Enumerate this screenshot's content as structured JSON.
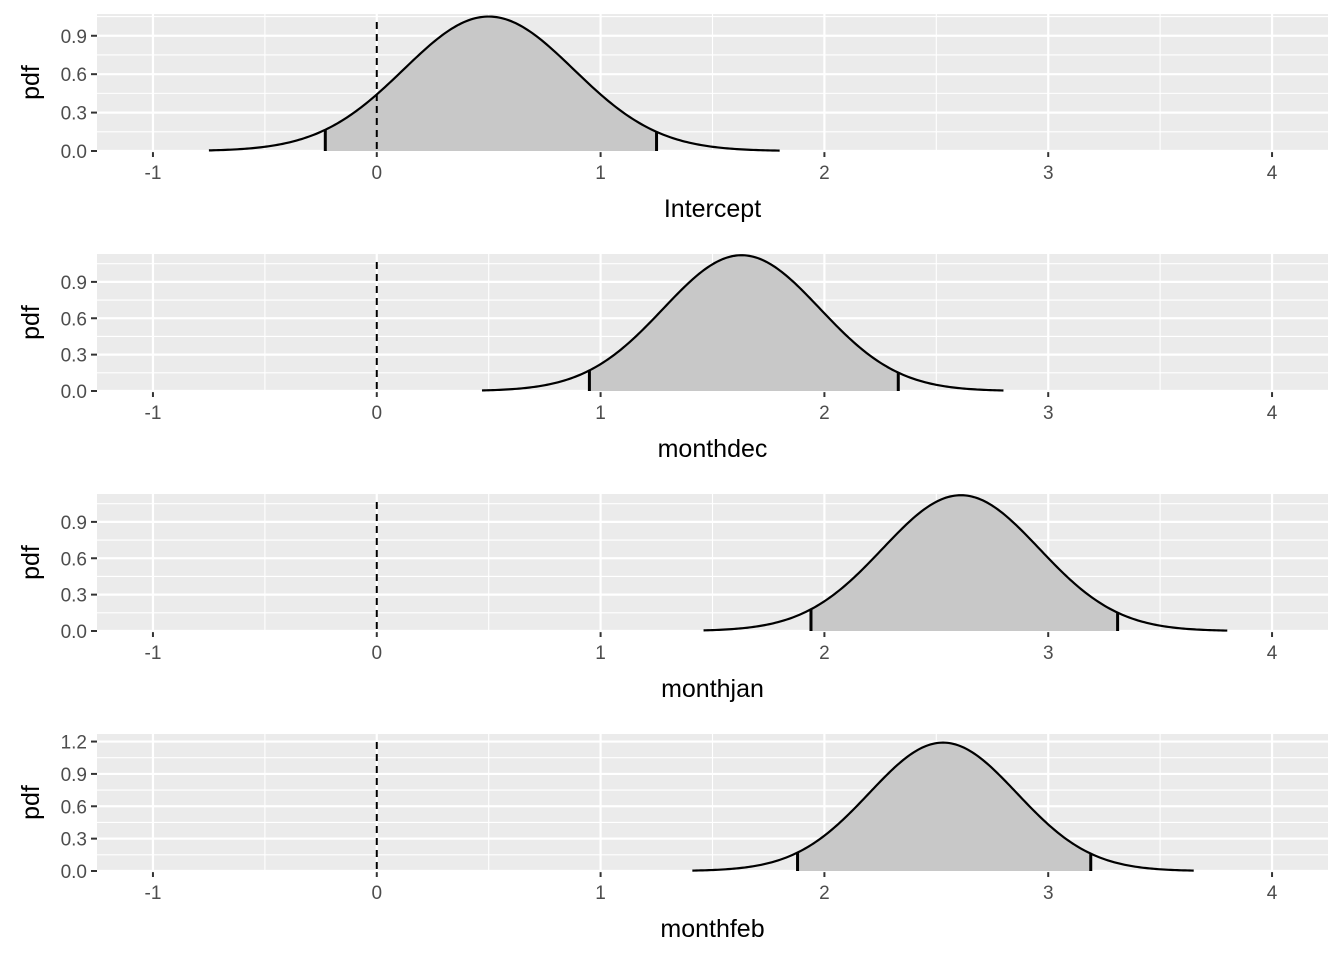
{
  "chart_data": [
    {
      "type": "area",
      "xlabel": "Intercept",
      "ylabel": "pdf",
      "xlim": [
        -1.25,
        4.25
      ],
      "ylim": [
        0,
        1.07
      ],
      "x_ticks": [
        -1,
        0,
        1,
        2,
        3,
        4
      ],
      "y_ticks": [
        0.0,
        0.3,
        0.6,
        0.9
      ],
      "y_tick_labels": [
        "0.0",
        "0.3",
        "0.6",
        "0.9"
      ],
      "distribution": {
        "mean": 0.5,
        "sd": 0.38,
        "peak": 1.05,
        "x_range": [
          -0.75,
          1.8
        ]
      },
      "reference_line_x": 0,
      "interval": [
        -0.23,
        1.25
      ],
      "grid": true,
      "colors": {
        "fill": "#c8c8c8",
        "line": "#000000",
        "panel": "#ebebeb"
      }
    },
    {
      "type": "area",
      "xlabel": "monthdec",
      "ylabel": "pdf",
      "xlim": [
        -1.25,
        4.25
      ],
      "ylim": [
        0,
        1.13
      ],
      "x_ticks": [
        -1,
        0,
        1,
        2,
        3,
        4
      ],
      "y_ticks": [
        0.0,
        0.3,
        0.6,
        0.9
      ],
      "y_tick_labels": [
        "0.0",
        "0.3",
        "0.6",
        "0.9"
      ],
      "distribution": {
        "mean": 1.63,
        "sd": 0.35,
        "peak": 1.12,
        "x_range": [
          0.47,
          2.8
        ]
      },
      "reference_line_x": 0,
      "interval": [
        0.95,
        2.33
      ],
      "grid": true,
      "colors": {
        "fill": "#c8c8c8",
        "line": "#000000",
        "panel": "#ebebeb"
      }
    },
    {
      "type": "area",
      "xlabel": "monthjan",
      "ylabel": "pdf",
      "xlim": [
        -1.25,
        4.25
      ],
      "ylim": [
        0,
        1.13
      ],
      "x_ticks": [
        -1,
        0,
        1,
        2,
        3,
        4
      ],
      "y_ticks": [
        0.0,
        0.3,
        0.6,
        0.9
      ],
      "y_tick_labels": [
        "0.0",
        "0.3",
        "0.6",
        "0.9"
      ],
      "distribution": {
        "mean": 2.61,
        "sd": 0.35,
        "peak": 1.12,
        "x_range": [
          1.46,
          3.8
        ]
      },
      "reference_line_x": 0,
      "interval": [
        1.94,
        3.31
      ],
      "grid": true,
      "colors": {
        "fill": "#c8c8c8",
        "line": "#000000",
        "panel": "#ebebeb"
      }
    },
    {
      "type": "area",
      "xlabel": "monthfeb",
      "ylabel": "pdf",
      "xlim": [
        -1.25,
        4.25
      ],
      "ylim": [
        0,
        1.27
      ],
      "x_ticks": [
        -1,
        0,
        1,
        2,
        3,
        4
      ],
      "y_ticks": [
        0.0,
        0.3,
        0.6,
        0.9,
        1.2
      ],
      "y_tick_labels": [
        "0.0",
        "0.3",
        "0.6",
        "0.9",
        "1.2"
      ],
      "distribution": {
        "mean": 2.53,
        "sd": 0.33,
        "peak": 1.19,
        "x_range": [
          1.41,
          3.65
        ]
      },
      "reference_line_x": 0,
      "interval": [
        1.88,
        3.19
      ],
      "grid": true,
      "colors": {
        "fill": "#c8c8c8",
        "line": "#000000",
        "panel": "#ebebeb"
      }
    }
  ]
}
